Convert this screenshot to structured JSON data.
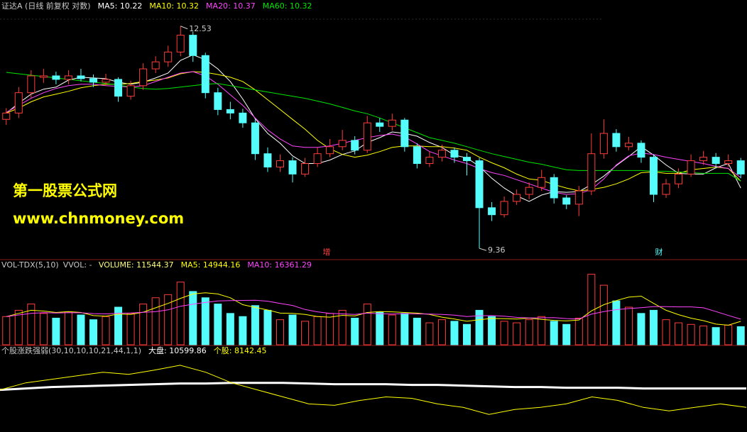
{
  "chart_data": [
    {
      "type": "candlestick",
      "title": "证达A (日线 前复权 对数)",
      "ylim": [
        9.22,
        12.74
      ],
      "up_color": "#ff3c3c",
      "down_color": "#54fcfc",
      "markers": [
        "增",
        "财"
      ],
      "candles": [
        [
          11.2,
          11.36,
          11.12,
          11.29
        ],
        [
          11.29,
          11.66,
          11.22,
          11.58
        ],
        [
          11.58,
          11.9,
          11.5,
          11.82
        ],
        [
          11.8,
          11.92,
          11.72,
          11.82
        ],
        [
          11.82,
          11.88,
          11.7,
          11.77
        ],
        [
          11.77,
          11.9,
          11.7,
          11.82
        ],
        [
          11.82,
          11.92,
          11.74,
          11.78
        ],
        [
          11.78,
          11.84,
          11.66,
          11.73
        ],
        [
          11.73,
          11.85,
          11.68,
          11.77
        ],
        [
          11.77,
          11.8,
          11.45,
          11.53
        ],
        [
          11.53,
          11.75,
          11.48,
          11.68
        ],
        [
          11.68,
          12.0,
          11.62,
          11.92
        ],
        [
          11.92,
          12.1,
          11.86,
          12.02
        ],
        [
          12.02,
          12.25,
          11.95,
          12.16
        ],
        [
          12.16,
          12.53,
          12.1,
          12.4
        ],
        [
          12.4,
          12.45,
          12.02,
          12.11
        ],
        [
          12.11,
          12.15,
          11.5,
          11.58
        ],
        [
          11.58,
          11.65,
          11.26,
          11.34
        ],
        [
          11.34,
          11.45,
          11.2,
          11.29
        ],
        [
          11.29,
          11.35,
          11.08,
          11.15
        ],
        [
          11.15,
          11.2,
          10.62,
          10.71
        ],
        [
          10.71,
          10.8,
          10.45,
          10.52
        ],
        [
          10.52,
          10.7,
          10.45,
          10.61
        ],
        [
          10.61,
          10.66,
          10.3,
          10.42
        ],
        [
          10.42,
          10.65,
          10.38,
          10.57
        ],
        [
          10.57,
          10.8,
          10.52,
          10.71
        ],
        [
          10.71,
          10.92,
          10.66,
          10.81
        ],
        [
          10.81,
          11.05,
          10.76,
          10.9
        ],
        [
          10.9,
          10.96,
          10.7,
          10.76
        ],
        [
          10.76,
          11.25,
          10.72,
          11.15
        ],
        [
          11.15,
          11.22,
          11.02,
          11.1
        ],
        [
          11.1,
          11.28,
          11.04,
          11.19
        ],
        [
          11.19,
          11.22,
          10.74,
          10.81
        ],
        [
          10.81,
          10.86,
          10.5,
          10.57
        ],
        [
          10.57,
          10.74,
          10.52,
          10.66
        ],
        [
          10.66,
          10.84,
          10.6,
          10.76
        ],
        [
          10.76,
          10.8,
          10.58,
          10.66
        ],
        [
          10.66,
          10.72,
          10.4,
          10.61
        ],
        [
          10.61,
          10.65,
          9.36,
          9.94
        ],
        [
          9.94,
          10.02,
          9.75,
          9.84
        ],
        [
          9.84,
          10.1,
          9.8,
          10.03
        ],
        [
          10.03,
          10.2,
          9.98,
          10.13
        ],
        [
          10.13,
          10.3,
          10.06,
          10.23
        ],
        [
          10.23,
          10.48,
          10.18,
          10.37
        ],
        [
          10.37,
          10.42,
          10.0,
          10.08
        ],
        [
          10.08,
          10.12,
          9.92,
          9.99
        ],
        [
          9.99,
          10.25,
          9.82,
          10.18
        ],
        [
          10.18,
          11.0,
          10.12,
          10.71
        ],
        [
          10.71,
          11.2,
          10.64,
          11.0
        ],
        [
          11.0,
          11.06,
          10.74,
          10.81
        ],
        [
          10.81,
          10.95,
          10.76,
          10.86
        ],
        [
          10.86,
          10.9,
          10.58,
          10.66
        ],
        [
          10.66,
          10.7,
          10.02,
          10.13
        ],
        [
          10.13,
          10.35,
          10.08,
          10.28
        ],
        [
          10.28,
          10.5,
          10.22,
          10.42
        ],
        [
          10.42,
          10.7,
          10.38,
          10.61
        ],
        [
          10.61,
          10.75,
          10.55,
          10.66
        ],
        [
          10.66,
          10.72,
          10.5,
          10.57
        ],
        [
          10.57,
          10.7,
          10.52,
          10.61
        ],
        [
          10.61,
          10.65,
          10.36,
          10.42
        ]
      ],
      "series": [
        {
          "name": "MA5",
          "color": "#ffffff",
          "values": [
            11.29,
            11.43,
            11.56,
            11.63,
            11.66,
            11.76,
            11.8,
            11.79,
            11.78,
            11.73,
            11.7,
            11.73,
            11.79,
            11.86,
            12.04,
            12.12,
            12.05,
            11.92,
            11.74,
            11.49,
            11.21,
            11.0,
            10.86,
            10.68,
            10.57,
            10.57,
            10.62,
            10.7,
            10.75,
            10.87,
            10.94,
            11.02,
            11.0,
            10.96,
            10.87,
            10.8,
            10.69,
            10.65,
            10.53,
            10.36,
            10.22,
            10.11,
            10.03,
            10.12,
            10.17,
            10.16,
            10.17,
            10.27,
            10.39,
            10.54,
            10.67,
            10.81,
            10.69,
            10.55,
            10.43,
            10.42,
            10.42,
            10.51,
            10.57,
            10.22
          ]
        },
        {
          "name": "MA10",
          "color": "#ffff00",
          "values": [
            11.29,
            11.36,
            11.45,
            11.52,
            11.56,
            11.6,
            11.65,
            11.68,
            11.7,
            11.7,
            11.71,
            11.74,
            11.76,
            11.79,
            11.85,
            11.88,
            11.87,
            11.84,
            11.8,
            11.74,
            11.62,
            11.48,
            11.34,
            11.2,
            11.06,
            10.9,
            10.78,
            10.7,
            10.66,
            10.69,
            10.74,
            10.8,
            10.82,
            10.82,
            10.81,
            10.81,
            10.79,
            10.76,
            10.66,
            10.58,
            10.51,
            10.42,
            10.35,
            10.33,
            10.27,
            10.22,
            10.18,
            10.2,
            10.23,
            10.28,
            10.35,
            10.44,
            10.45,
            10.43,
            10.43,
            10.48,
            10.5,
            10.52,
            10.5,
            10.32
          ]
        },
        {
          "name": "MA20",
          "color": "#ff44ff",
          "values": [
            11.3,
            11.4,
            11.5,
            11.58,
            11.64,
            11.68,
            11.7,
            11.7,
            11.68,
            11.67,
            11.66,
            11.68,
            11.74,
            11.8,
            11.86,
            11.88,
            11.82,
            11.7,
            11.55,
            11.4,
            11.22,
            11.05,
            10.92,
            10.82,
            10.8,
            10.8,
            10.82,
            10.86,
            10.9,
            10.94,
            10.97,
            10.99,
            10.95,
            10.85,
            10.74,
            10.68,
            10.62,
            10.57,
            10.5,
            10.44,
            10.4,
            10.34,
            10.28,
            10.22,
            10.16,
            10.13,
            10.14,
            10.2,
            10.35,
            10.55,
            10.68,
            10.72,
            10.7,
            10.66,
            10.63,
            10.6,
            10.57,
            10.53,
            10.5,
            10.37
          ]
        },
        {
          "name": "MA60",
          "color": "#00e600",
          "values": [
            11.87,
            11.85,
            11.83,
            11.81,
            11.79,
            11.77,
            11.75,
            11.73,
            11.71,
            11.69,
            11.66,
            11.64,
            11.63,
            11.64,
            11.66,
            11.68,
            11.7,
            11.71,
            11.68,
            11.65,
            11.62,
            11.59,
            11.56,
            11.53,
            11.5,
            11.46,
            11.42,
            11.37,
            11.32,
            11.28,
            11.22,
            11.15,
            11.08,
            11.01,
            10.94,
            10.9,
            10.86,
            10.81,
            10.76,
            10.71,
            10.67,
            10.63,
            10.59,
            10.56,
            10.52,
            10.48,
            10.47,
            10.47,
            10.47,
            10.47,
            10.47,
            10.47,
            10.46,
            10.46,
            10.45,
            10.44,
            10.43,
            10.43,
            10.43,
            10.32
          ]
        }
      ]
    },
    {
      "type": "bar",
      "title": "VOL-TDX(5,10)",
      "subtitle": "VVOL: -",
      "ylim": [
        0,
        48000
      ],
      "series": [
        {
          "name": "VOLUME",
          "color": "#ffff80",
          "style": "bar",
          "values": [
            18000,
            22000,
            26000,
            20000,
            17000,
            21000,
            19000,
            16000,
            18000,
            24000,
            20000,
            26000,
            30000,
            32000,
            40000,
            34000,
            30000,
            26000,
            20000,
            18000,
            25000,
            22000,
            16000,
            19000,
            15000,
            18000,
            20000,
            22000,
            17000,
            26000,
            21000,
            19000,
            20000,
            17000,
            14000,
            16000,
            15000,
            13000,
            22000,
            18000,
            15000,
            14000,
            16000,
            18000,
            15000,
            13000,
            17000,
            45000,
            38000,
            28000,
            24000,
            20000,
            22000,
            16000,
            14000,
            13000,
            12000,
            11000,
            12500,
            11544.37
          ]
        },
        {
          "name": "MA5",
          "color": "#ffff00",
          "values": [
            18000,
            20000,
            22000,
            21500,
            20600,
            21200,
            20600,
            18600,
            18200,
            19600,
            19400,
            20800,
            23600,
            26400,
            29600,
            32400,
            33200,
            32400,
            30000,
            25600,
            23800,
            22200,
            20200,
            20000,
            19400,
            18000,
            17600,
            18800,
            18400,
            20600,
            21200,
            21000,
            20600,
            20200,
            19400,
            17600,
            16400,
            15000,
            16000,
            16800,
            16600,
            16400,
            17000,
            16200,
            15600,
            15200,
            15800,
            21600,
            25600,
            28200,
            30400,
            31000,
            26400,
            22000,
            19200,
            17000,
            15400,
            13200,
            12500,
            14944.16
          ]
        },
        {
          "name": "MA10",
          "color": "#ff44ff",
          "values": [
            18000,
            19000,
            20000,
            20500,
            20300,
            20500,
            20400,
            19900,
            19700,
            20100,
            20300,
            20700,
            21100,
            22300,
            24600,
            25900,
            27000,
            28000,
            28200,
            28300,
            28400,
            27800,
            26400,
            25100,
            22500,
            21000,
            20000,
            19700,
            19400,
            20200,
            19800,
            19600,
            19900,
            19700,
            19600,
            19400,
            18900,
            18000,
            18500,
            18600,
            18200,
            17500,
            17100,
            17200,
            17300,
            16700,
            16500,
            19500,
            21200,
            22400,
            23100,
            23700,
            24300,
            24300,
            24200,
            24200,
            23600,
            21200,
            18700,
            16361.29
          ]
        }
      ]
    },
    {
      "type": "line",
      "title": "个股涨跌强弱(30,10,10,10,21,44,1,1)",
      "ylim": [
        5050,
        14970
      ],
      "series": [
        {
          "name": "大盘",
          "color": "#ffffff",
          "width": 3,
          "values": [
            10418,
            10600,
            10782,
            10873,
            10964,
            11055,
            11146,
            11237,
            11237,
            11328,
            11328,
            11328,
            11237,
            11146,
            11146,
            11146,
            11055,
            11055,
            10964,
            10873,
            10782,
            10782,
            10691,
            10691,
            10691,
            10600,
            10600,
            10600,
            10600,
            10599.86
          ]
        },
        {
          "name": "个股",
          "color": "#ffff00",
          "width": 1,
          "values": [
            10417,
            11327,
            11782,
            12237,
            12692,
            12419,
            12965,
            13602,
            12692,
            11327,
            10417,
            9507,
            8597,
            8415,
            9052,
            9507,
            9325,
            8597,
            8142,
            7232,
            7869,
            8142,
            8597,
            9507,
            9052,
            8142,
            7687,
            8142,
            8597,
            8142.45
          ]
        }
      ]
    }
  ],
  "watermark": {
    "name": "第一股票公式网",
    "url": "www.chnmoney.com"
  }
}
